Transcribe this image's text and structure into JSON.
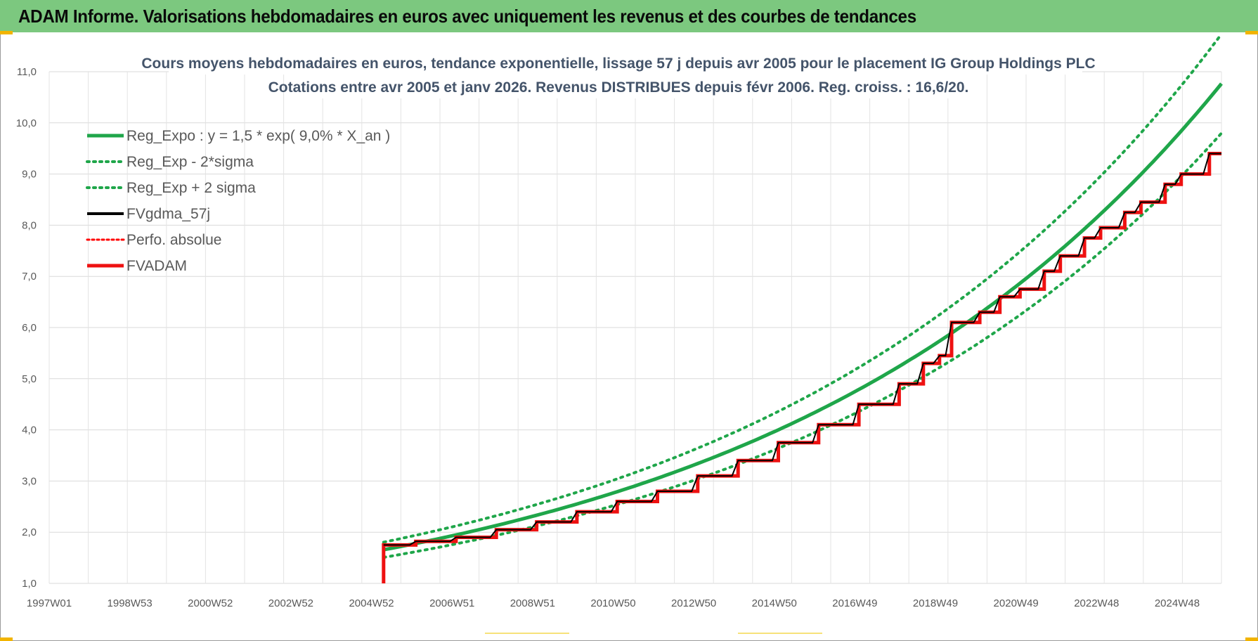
{
  "banner": {
    "title": "ADAM Informe. Valorisations hebdomadaires en euros avec uniquement les revenus et des courbes de tendances"
  },
  "colors": {
    "banner_bg": "#7cc87f",
    "regression": "#1fa64a",
    "fvgdma": "#000000",
    "perfo": "#ff0000",
    "fvadam": "#ee1111",
    "grid": "#d9d9d9"
  },
  "chart_data": {
    "type": "line",
    "title": "Cours moyens hebdomadaires en euros, tendance exponentielle, lissage 57 j depuis avr 2005 pour le placement IG Group Holdings PLC",
    "subtitle": "Cotations entre avr 2005 et janv 2026. Revenus DISTRIBUES depuis févr 2006. Reg. croiss. : 16,6/20.",
    "xlabel": "",
    "ylabel": "",
    "x_ticks": [
      "1997W01",
      "1998W53",
      "2000W52",
      "2002W52",
      "2004W52",
      "2006W51",
      "2008W51",
      "2010W50",
      "2012W50",
      "2014W50",
      "2016W49",
      "2018W49",
      "2020W49",
      "2022W48",
      "2024W48"
    ],
    "x_range": [
      1997.0,
      2026.1
    ],
    "y_ticks": [
      "1,0",
      "2,0",
      "3,0",
      "4,0",
      "5,0",
      "6,0",
      "7,0",
      "8,0",
      "9,0",
      "10,0",
      "11,0"
    ],
    "ylim": [
      1.0,
      11.0
    ],
    "grid": true,
    "legend_position": "top-left",
    "regression": {
      "a": 1.5,
      "rate": 0.09,
      "start": 2005.3,
      "end": 2026.1,
      "sigma_factor": 0.045
    },
    "series": [
      {
        "name": "Reg_Expo : y = 1,5 * exp( 9,0% *  X_an )",
        "style": "solid-green"
      },
      {
        "name": "Reg_Exp - 2*sigma",
        "style": "dotted-green"
      },
      {
        "name": "Reg_Exp + 2 sigma",
        "style": "dotted-green"
      },
      {
        "name": "FVgdma_57j",
        "style": "solid-black"
      },
      {
        "name": "Perfo. absolue",
        "style": "dotted-red"
      },
      {
        "name": "FVADAM",
        "style": "solid-red-thick",
        "step_x": [
          2005.3,
          2006.1,
          2007.1,
          2008.1,
          2009.1,
          2010.1,
          2011.1,
          2012.1,
          2013.1,
          2014.1,
          2015.1,
          2016.1,
          2017.1,
          2018.1,
          2018.7,
          2019.1,
          2019.4,
          2020.1,
          2020.6,
          2021.1,
          2021.7,
          2022.1,
          2022.7,
          2023.1,
          2023.7,
          2024.1,
          2024.7,
          2025.1,
          2025.8,
          2026.1
        ],
        "step_y": [
          1.75,
          1.82,
          1.9,
          2.05,
          2.2,
          2.4,
          2.6,
          2.8,
          3.1,
          3.4,
          3.75,
          4.1,
          4.5,
          4.9,
          5.3,
          5.45,
          6.1,
          6.3,
          6.6,
          6.75,
          7.1,
          7.4,
          7.75,
          7.95,
          8.25,
          8.45,
          8.8,
          9.0,
          9.4,
          9.4
        ]
      }
    ]
  }
}
